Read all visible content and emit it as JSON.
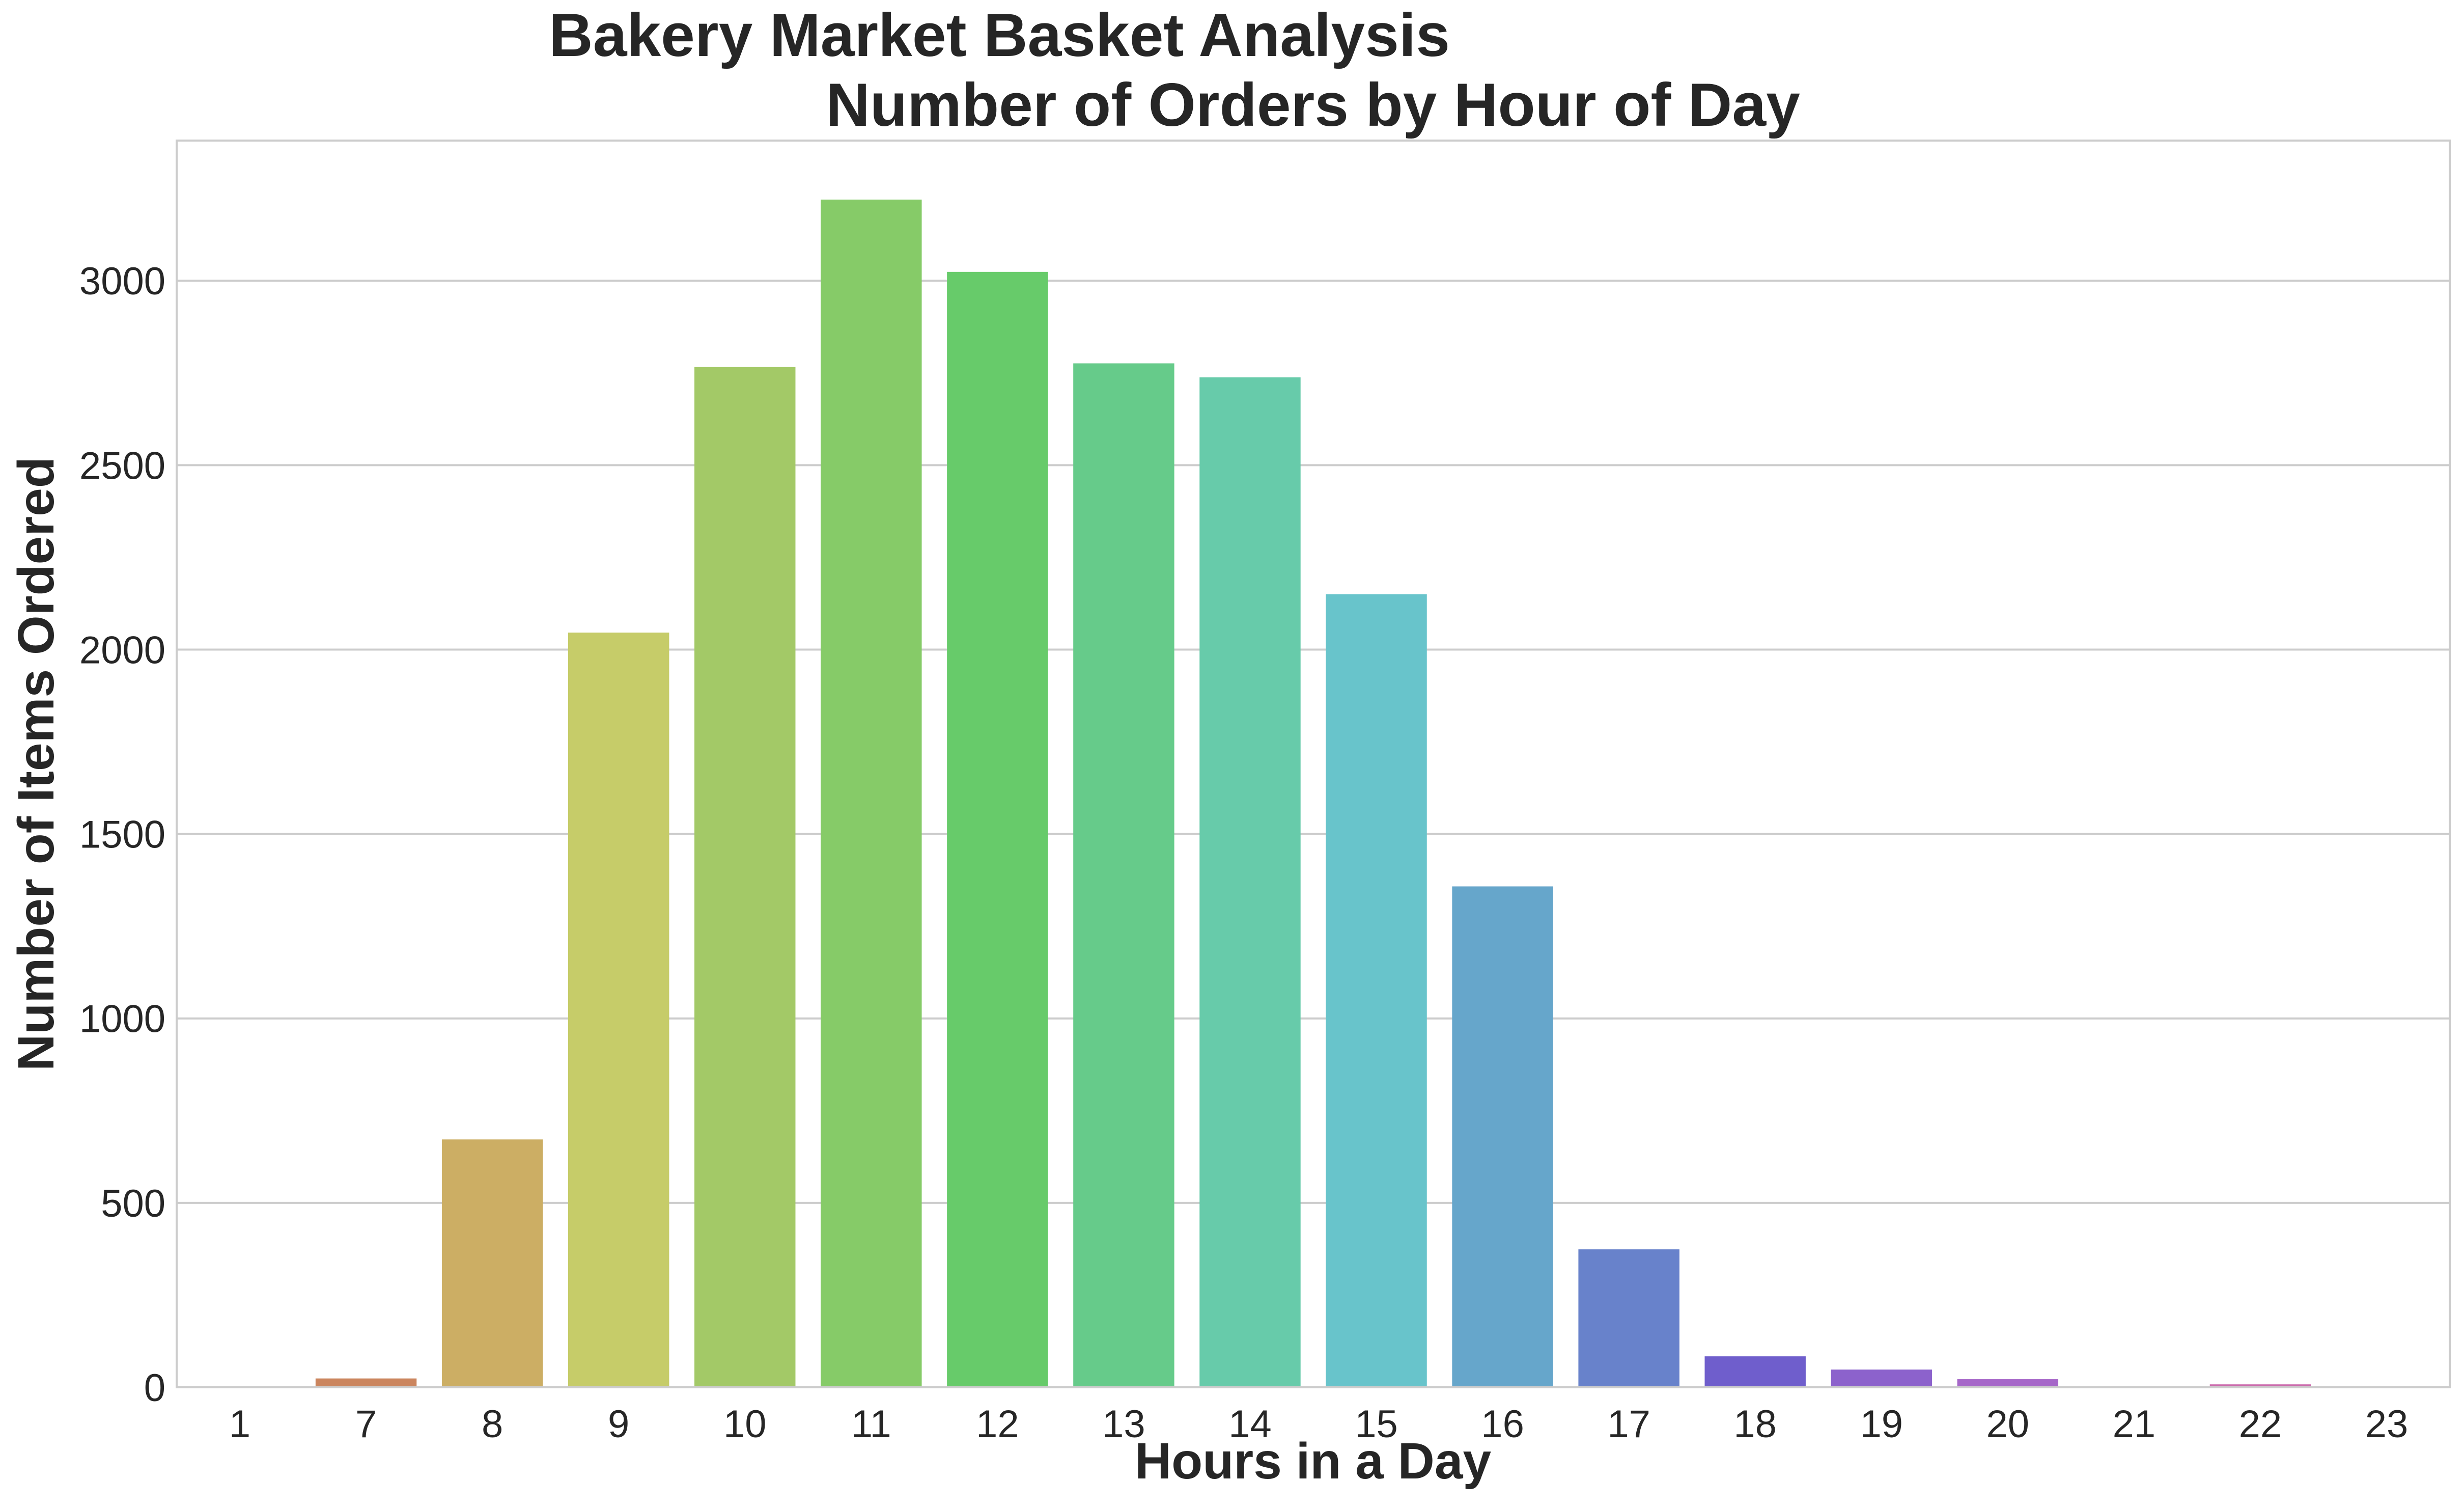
{
  "chart_data": {
    "type": "bar",
    "title": "Bakery Market Basket Analysis",
    "subtitle": "Number of Orders by Hour of Day",
    "xlabel": "Hours in a Day",
    "ylabel": "Number of Items Ordered",
    "categories": [
      "1",
      "7",
      "8",
      "9",
      "10",
      "11",
      "12",
      "13",
      "14",
      "15",
      "16",
      "17",
      "18",
      "19",
      "20",
      "21",
      "22",
      "23"
    ],
    "values": [
      1,
      24,
      672,
      2046,
      2766,
      3220,
      3024,
      2776,
      2738,
      2150,
      1358,
      374,
      84,
      48,
      22,
      2,
      8,
      1
    ],
    "colors": [
      "#d2795a",
      "#cb855e",
      "#ccae64",
      "#c6cc69",
      "#a3c967",
      "#86cb68",
      "#67cb6a",
      "#66cb8a",
      "#67cbaa",
      "#68c4cb",
      "#66a6cb",
      "#6882cb",
      "#6f5ecc",
      "#8c62cc",
      "#a667c9",
      "#c56acb",
      "#cb6aac",
      "#ce6a85"
    ],
    "ylim": [
      0,
      3380
    ],
    "yticks": [
      0,
      500,
      1000,
      1500,
      2000,
      2500,
      3000
    ],
    "grid": true,
    "gridColor": "#cccccc",
    "frameColor": "#cccccc",
    "textColor": "#262626"
  }
}
